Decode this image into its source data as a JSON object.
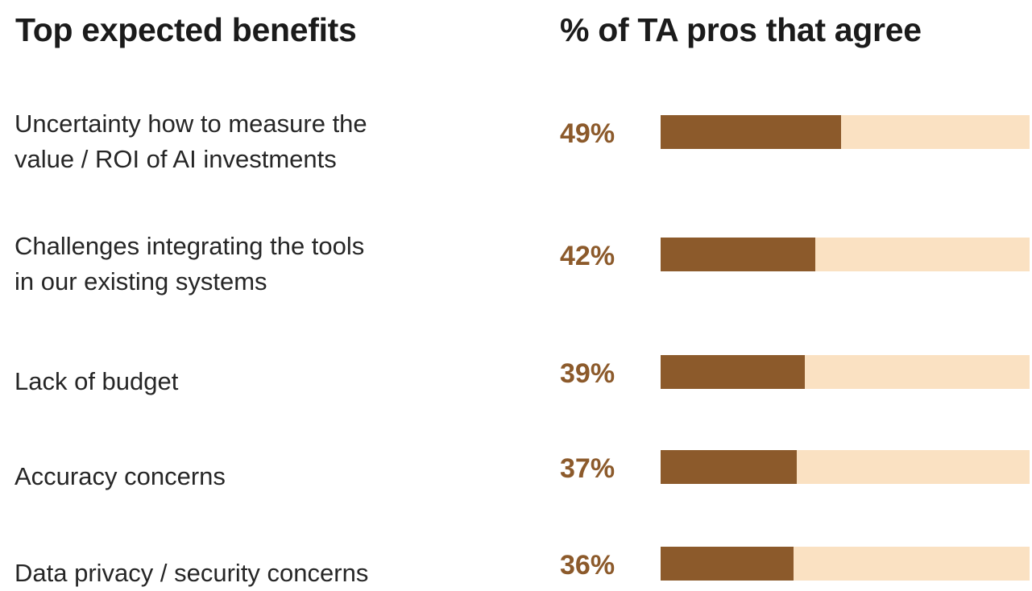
{
  "headings": {
    "left": "Top expected benefits",
    "right": "% of TA pros that agree"
  },
  "colors": {
    "bar_fill": "#8c5a2b",
    "bar_track": "#fae1c2",
    "value_text": "#8c5a2b"
  },
  "chart_data": {
    "type": "bar",
    "orientation": "horizontal",
    "title": "",
    "xlabel": "% of TA pros that agree",
    "ylabel": "Top expected benefits",
    "xlim": [
      0,
      100
    ],
    "categories": [
      "Uncertainty how to measure the\nvalue / ROI of AI investments",
      "Challenges integrating the tools\nin our existing systems",
      "Lack of budget",
      "Accuracy concerns",
      "Data privacy / security concerns"
    ],
    "values": [
      49,
      42,
      39,
      37,
      36
    ],
    "value_labels": [
      "49%",
      "42%",
      "39%",
      "37%",
      "36%"
    ]
  }
}
